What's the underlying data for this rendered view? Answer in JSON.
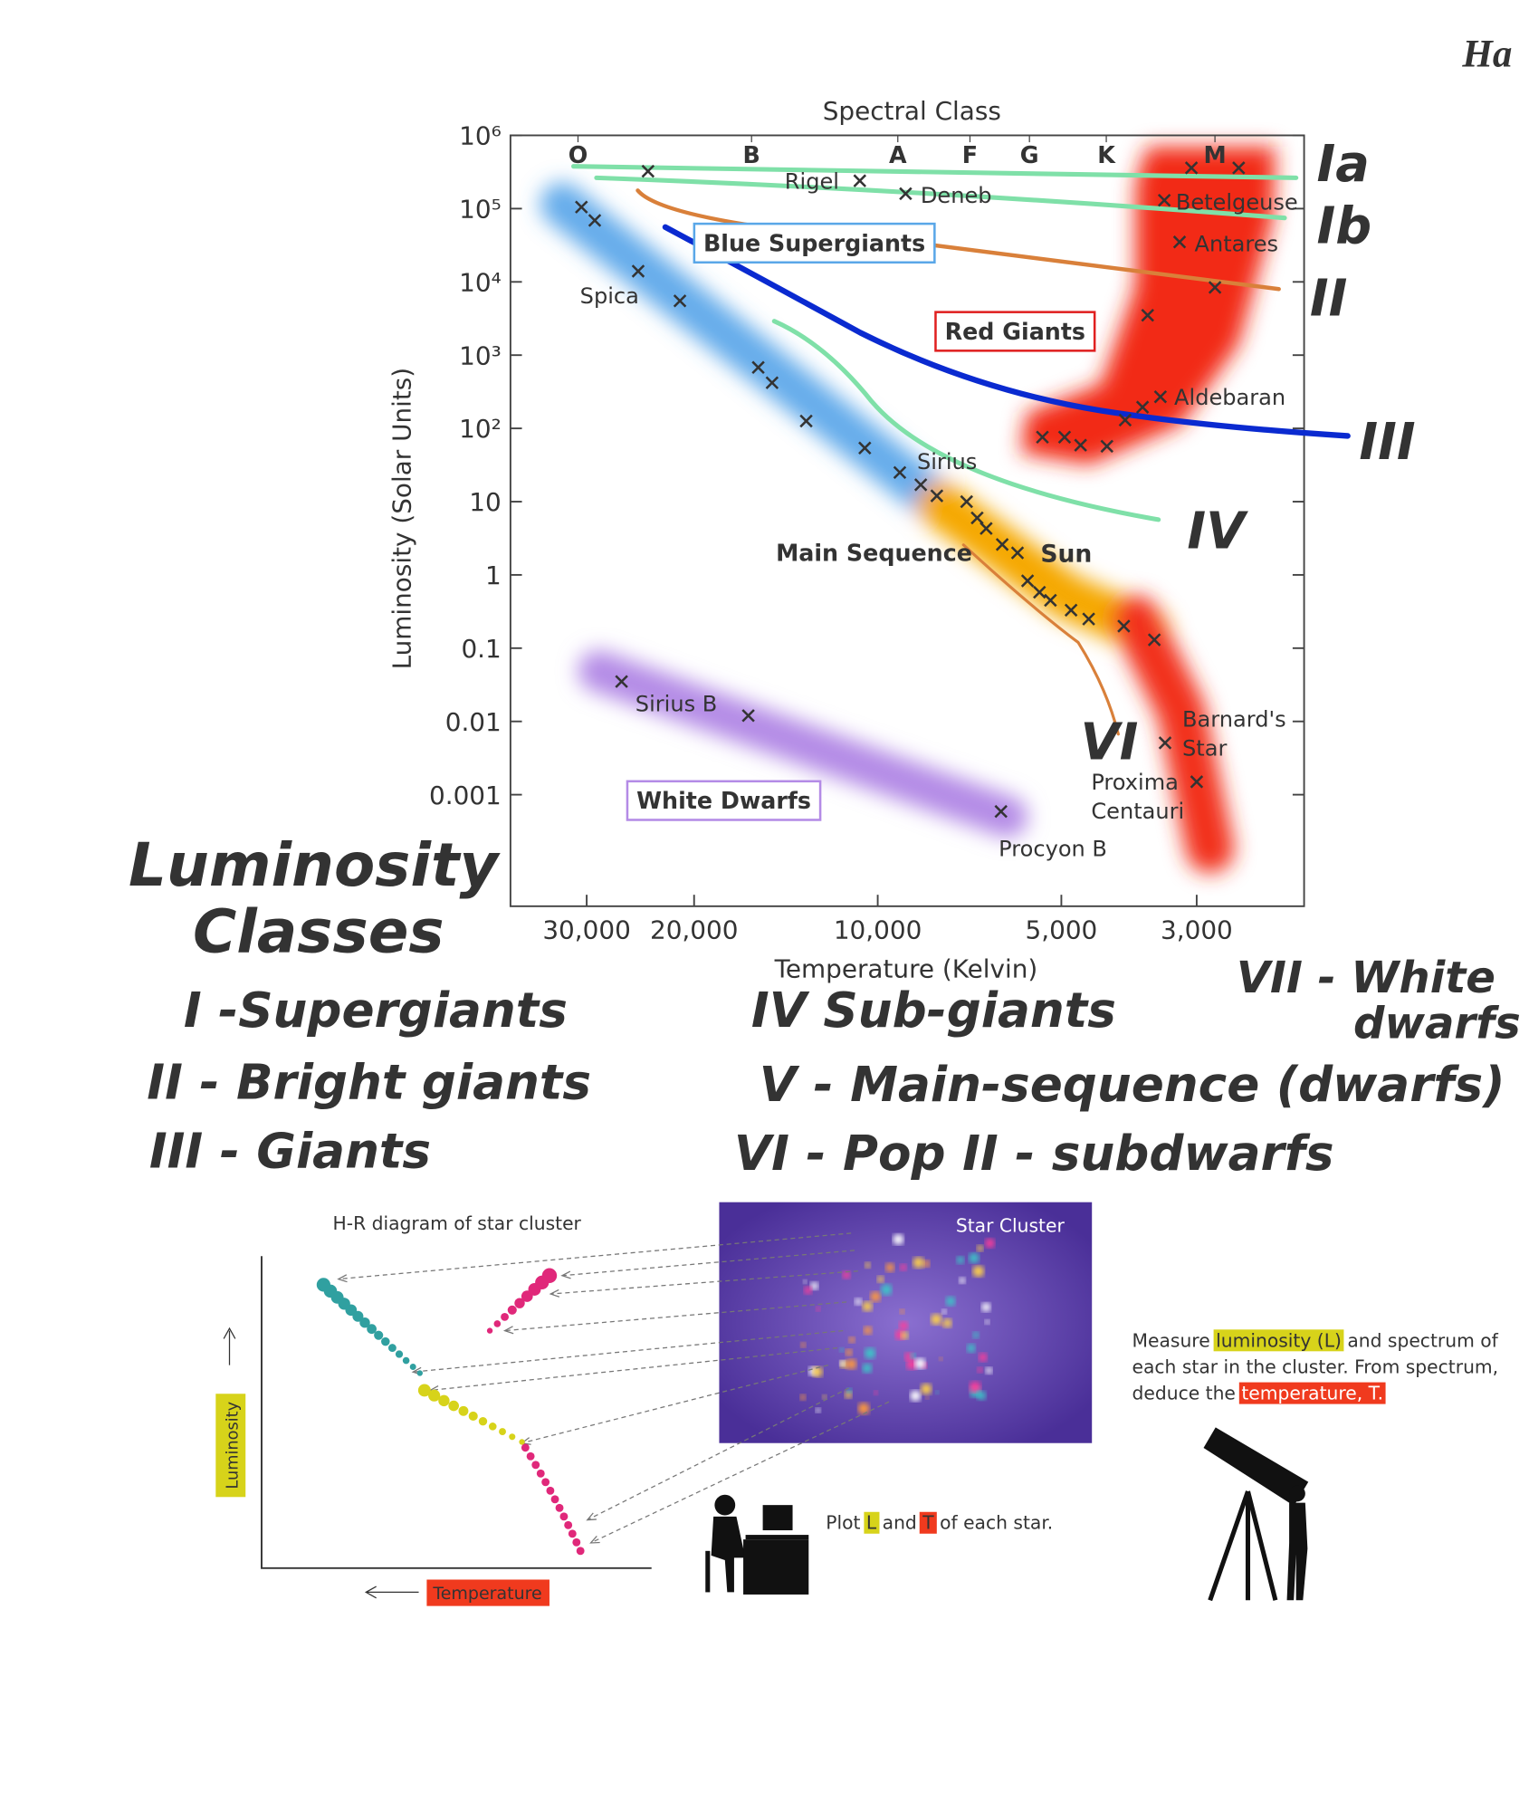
{
  "chart_data": {
    "type": "scatter",
    "top_axis_label": "Spectral Class",
    "y_axis_label": "Luminosity (Solar Units)",
    "x_axis_label": "Temperature (Kelvin)",
    "x_scale": "log",
    "y_scale": "log",
    "xlim": [
      40000,
      2000
    ],
    "ylim": [
      3e-05,
      1000000
    ],
    "xticks": [
      {
        "value": 30000,
        "label": "30,000"
      },
      {
        "value": 20000,
        "label": "20,000"
      },
      {
        "value": 10000,
        "label": "10,000"
      },
      {
        "value": 5000,
        "label": "5,000"
      },
      {
        "value": 3000,
        "label": "3,000"
      }
    ],
    "yticks": [
      {
        "value": 1000000,
        "label": "10⁶"
      },
      {
        "value": 100000,
        "label": "10⁵"
      },
      {
        "value": 10000,
        "label": "10⁴"
      },
      {
        "value": 1000,
        "label": "10³"
      },
      {
        "value": 100,
        "label": "10²"
      },
      10,
      1,
      0.1,
      0.01,
      0.001
    ],
    "spectral_class_ticks": [
      {
        "value": 31000,
        "label": "O"
      },
      {
        "value": 16100,
        "label": "B"
      },
      {
        "value": 9270,
        "label": "A"
      },
      {
        "value": 7060,
        "label": "F"
      },
      {
        "value": 5640,
        "label": "G"
      },
      {
        "value": 4220,
        "label": "K"
      },
      {
        "value": 2800,
        "label": "M"
      }
    ],
    "marker_color": "#333333",
    "points": [
      {
        "label": "Rigel",
        "x": 10700,
        "y": 240000
      },
      {
        "label": "Deneb",
        "x": 9000,
        "y": 160000
      },
      {
        "label": "Betelgeuse",
        "x": 3390,
        "y": 130000
      },
      {
        "label": "Antares",
        "x": 3200,
        "y": 35000
      },
      {
        "label": "Spica",
        "x": 24700,
        "y": 14000
      },
      {
        "label": "Aldebaran",
        "x": 3440,
        "y": 270
      },
      {
        "label": "Sirius",
        "x": 9200,
        "y": 25
      },
      {
        "label": "Sun",
        "x": 5900,
        "y": 2
      },
      {
        "label": "Sirius B",
        "x": 26300,
        "y": 0.035
      },
      {
        "label": "Barnard's Star",
        "x": 3380,
        "y": 0.0051
      },
      {
        "label": "Proxima Centauri",
        "x": 3000,
        "y": 0.0015
      },
      {
        "label": "Procyon B",
        "x": 6280,
        "y": 0.00059
      },
      {
        "x": 30600,
        "y": 105000
      },
      {
        "x": 29100,
        "y": 69000
      },
      {
        "x": 23800,
        "y": 324000
      },
      {
        "x": 21100,
        "y": 5500
      },
      {
        "x": 15700,
        "y": 680
      },
      {
        "x": 14900,
        "y": 420
      },
      {
        "x": 13100,
        "y": 126
      },
      {
        "x": 10500,
        "y": 54
      },
      {
        "x": 8500,
        "y": 17
      },
      {
        "x": 8000,
        "y": 12
      },
      {
        "x": 7150,
        "y": 10
      },
      {
        "x": 6870,
        "y": 6
      },
      {
        "x": 6640,
        "y": 4.3
      },
      {
        "x": 6250,
        "y": 2.6
      },
      {
        "x": 5680,
        "y": 0.83
      },
      {
        "x": 5430,
        "y": 0.58
      },
      {
        "x": 5210,
        "y": 0.45
      },
      {
        "x": 4820,
        "y": 0.33
      },
      {
        "x": 4510,
        "y": 0.25
      },
      {
        "x": 3950,
        "y": 0.2
      },
      {
        "x": 3520,
        "y": 0.13
      },
      {
        "x": 3060,
        "y": 360000
      },
      {
        "x": 2560,
        "y": 360000
      },
      {
        "x": 2800,
        "y": 8400
      },
      {
        "x": 3610,
        "y": 3500
      },
      {
        "x": 3680,
        "y": 195
      },
      {
        "x": 3930,
        "y": 130
      },
      {
        "x": 5370,
        "y": 76
      },
      {
        "x": 4940,
        "y": 76
      },
      {
        "x": 4650,
        "y": 59
      },
      {
        "x": 4210,
        "y": 57
      },
      {
        "x": 16300,
        "y": 0.012
      }
    ],
    "region_labels": [
      "Blue Supergiants",
      "Red Giants",
      "Main Sequence",
      "White Dwarfs"
    ]
  },
  "annotations": {
    "corner_mark": "Ha",
    "class_marks": [
      "Ia",
      "Ib",
      "II",
      "III",
      "IV",
      "VI"
    ],
    "heading": [
      "Luminosity",
      "Classes"
    ],
    "classes": [
      "I -Supergiants",
      "II - Bright giants",
      "III - Giants",
      "IV Sub-giants",
      "V - Main-sequence (dwarfs)",
      "VI - Pop II - subdwarfs",
      "VII - White",
      "dwarfs"
    ]
  },
  "illustration": {
    "title": "H-R diagram of star cluster",
    "cluster_label": "Star Cluster",
    "y_label": "Luminosity",
    "x_label": "Temperature",
    "plot_caption": [
      "Plot",
      "L",
      "and",
      "T",
      "of each star."
    ],
    "measure_caption": [
      "Measure",
      "luminosity (L)",
      "and spectrum of",
      "each star in the cluster. From spectrum,",
      "deduce the",
      "temperature, T."
    ]
  }
}
